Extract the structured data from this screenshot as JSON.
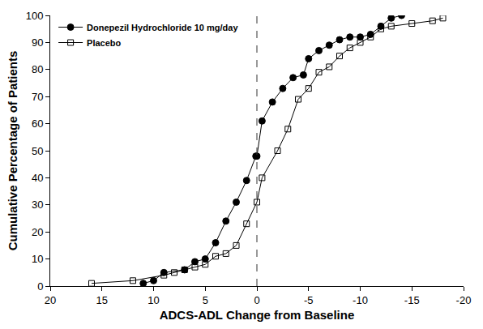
{
  "chart_data": {
    "type": "line",
    "x_label": "ADCS-ADL Change from Baseline",
    "y_label": "Cumulative Percentage of Patients",
    "xlim": [
      20,
      -20
    ],
    "xticks": [
      20,
      15,
      10,
      5,
      0,
      -5,
      -10,
      -15,
      -20
    ],
    "ylim": [
      0,
      100
    ],
    "yticks": [
      0,
      10,
      20,
      30,
      40,
      50,
      60,
      70,
      80,
      90,
      100
    ],
    "grid": false,
    "legend": "top-left",
    "reference_lines": [
      {
        "x": 0,
        "line_style": "dashed"
      }
    ],
    "series": [
      {
        "name": "Donepezil Hydrochloride 10 mg/day",
        "color": "#000000",
        "marker": "circle",
        "line_style": "solid",
        "x": [
          11,
          10,
          9,
          7,
          6,
          5,
          4,
          3,
          2,
          1,
          0.1,
          0,
          -0.5,
          -1.5,
          -2.5,
          -3.5,
          -4.5,
          -5,
          -6,
          -7,
          -8,
          -9,
          -10,
          -11,
          -12,
          -13,
          -14
        ],
        "values": [
          1,
          2,
          5,
          6,
          9,
          10,
          16,
          24,
          31,
          39,
          48,
          48,
          61,
          68,
          73,
          77,
          78,
          84,
          87,
          89,
          91,
          92,
          92,
          93,
          96,
          99,
          100
        ]
      },
      {
        "name": "Placebo",
        "color": "#000000",
        "marker": "open-square",
        "line_style": "solid",
        "x": [
          16,
          12,
          9,
          8,
          7,
          6,
          5,
          4,
          3,
          2,
          1,
          0,
          -0.5,
          -2,
          -3,
          -4,
          -5,
          -6,
          -7,
          -8,
          -9,
          -10,
          -11,
          -12,
          -13,
          -15,
          -17,
          -18
        ],
        "values": [
          1,
          2,
          4,
          5,
          6,
          7,
          8,
          11,
          12,
          15,
          23,
          31,
          40,
          50,
          58,
          69,
          73,
          79,
          81,
          85,
          88,
          90,
          92,
          95,
          96,
          97,
          98,
          99
        ]
      }
    ]
  }
}
